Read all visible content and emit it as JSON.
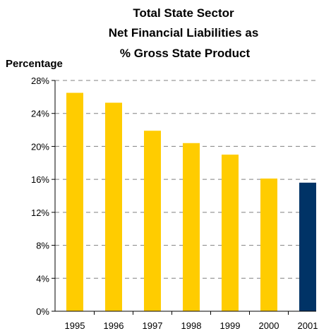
{
  "chart_data": {
    "type": "bar",
    "title_lines": [
      "Total State Sector",
      "Net Financial Liabilities as",
      "% Gross State Product"
    ],
    "ylabel": "Percentage",
    "xlabel": "",
    "categories": [
      "1995",
      "1996",
      "1997",
      "1998",
      "1999",
      "2000",
      "2001"
    ],
    "values": [
      26.5,
      25.3,
      21.9,
      20.4,
      19.0,
      16.1,
      15.6
    ],
    "ylim": [
      0,
      28
    ],
    "yticks": [
      0,
      4,
      8,
      12,
      16,
      20,
      24,
      28
    ],
    "ytick_labels": [
      "0%",
      "4%",
      "8%",
      "12%",
      "16%",
      "20%",
      "24%",
      "28%"
    ],
    "grid": "dashed horizontal",
    "colors": {
      "bar": "#FFCC00",
      "highlight_bar": "#003366",
      "grid": "#808080",
      "axis": "#000000"
    },
    "highlight_index": 6
  }
}
